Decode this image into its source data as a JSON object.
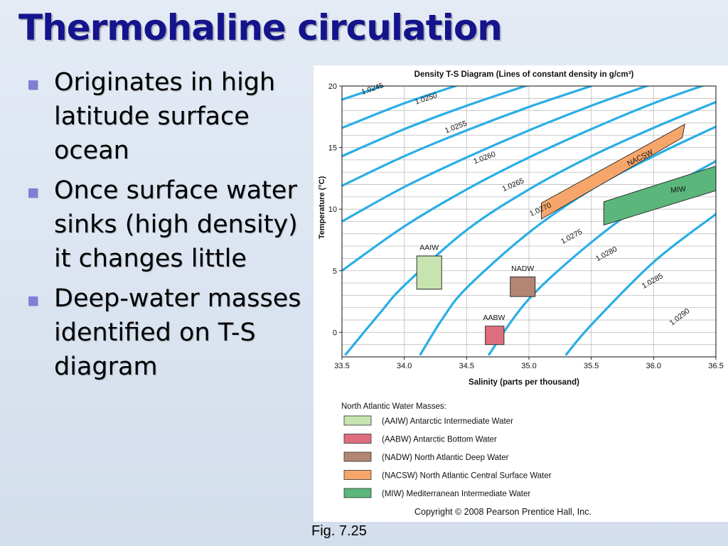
{
  "slide": {
    "title": "Thermohaline circulation",
    "bullets": [
      "Originates in high latitude surface ocean",
      "Once surface water sinks (high density) it changes little",
      "Deep-water masses identified on T-S diagram"
    ],
    "caption": "Fig. 7.25"
  },
  "chart_data": {
    "type": "diagram",
    "title": "Density T-S Diagram (Lines of constant density in g/cm³)",
    "xlabel": "Salinity (parts per thousand)",
    "ylabel": "Temperature (°C)",
    "xlim": [
      33.5,
      36.5
    ],
    "ylim": [
      -2,
      20
    ],
    "x_ticks": [
      "33.5",
      "34.0",
      "34.5",
      "35.0",
      "35.5",
      "36.0",
      "36.5"
    ],
    "y_ticks": [
      "0",
      "5",
      "10",
      "15",
      "20"
    ],
    "x_tick_values": [
      33.5,
      34.0,
      34.5,
      35.0,
      35.5,
      36.0,
      36.5
    ],
    "y_tick_values": [
      0,
      5,
      10,
      15,
      20
    ],
    "grid": true,
    "line_color": "#2aaee6",
    "isopycnals": [
      {
        "label": "1.0245",
        "points": [
          [
            33.5,
            18.9
          ],
          [
            34.0,
            20.6
          ]
        ],
        "label_at": [
          33.75,
          19.6
        ]
      },
      {
        "label": "1.0250",
        "points": [
          [
            33.5,
            16.6
          ],
          [
            34.0,
            18.6
          ],
          [
            34.5,
            20.3
          ]
        ],
        "label_at": [
          34.18,
          18.8
        ]
      },
      {
        "label": "1.0255",
        "points": [
          [
            33.5,
            14.3
          ],
          [
            34.0,
            16.5
          ],
          [
            34.5,
            18.4
          ],
          [
            35.0,
            20.1
          ]
        ],
        "label_at": [
          34.42,
          16.5
        ]
      },
      {
        "label": "1.0260",
        "points": [
          [
            33.5,
            11.9
          ],
          [
            34.0,
            14.3
          ],
          [
            34.5,
            16.4
          ],
          [
            35.0,
            18.3
          ],
          [
            35.5,
            20.0
          ]
        ],
        "label_at": [
          34.65,
          14.0
        ]
      },
      {
        "label": "1.0265",
        "points": [
          [
            33.5,
            9.0
          ],
          [
            34.0,
            11.8
          ],
          [
            34.5,
            14.2
          ],
          [
            35.0,
            16.4
          ],
          [
            35.5,
            18.4
          ],
          [
            36.0,
            20.2
          ]
        ],
        "label_at": [
          34.88,
          11.8
        ]
      },
      {
        "label": "1.0270",
        "points": [
          [
            33.5,
            5.0
          ],
          [
            34.0,
            8.6
          ],
          [
            34.5,
            11.6
          ],
          [
            35.0,
            14.2
          ],
          [
            35.5,
            16.5
          ],
          [
            36.0,
            18.6
          ],
          [
            36.5,
            20.4
          ]
        ],
        "label_at": [
          35.1,
          9.8
        ]
      },
      {
        "label": "1.0275",
        "points": [
          [
            33.53,
            -1.8
          ],
          [
            33.8,
            1.5
          ],
          [
            34.0,
            3.8
          ],
          [
            34.5,
            8.3
          ],
          [
            35.0,
            11.6
          ],
          [
            35.5,
            14.3
          ],
          [
            36.0,
            16.6
          ],
          [
            36.5,
            18.7
          ]
        ],
        "label_at": [
          35.35,
          7.6
        ]
      },
      {
        "label": "1.0280",
        "points": [
          [
            34.13,
            -1.8
          ],
          [
            34.3,
            1.0
          ],
          [
            34.5,
            3.6
          ],
          [
            35.0,
            8.1
          ],
          [
            35.5,
            11.6
          ],
          [
            36.0,
            14.3
          ],
          [
            36.5,
            16.7
          ]
        ],
        "label_at": [
          35.63,
          6.2
        ]
      },
      {
        "label": "1.0285",
        "points": [
          [
            34.68,
            -1.8
          ],
          [
            35.0,
            2.7
          ],
          [
            35.5,
            7.3
          ],
          [
            36.0,
            11.0
          ],
          [
            36.5,
            13.9
          ]
        ],
        "label_at": [
          36.0,
          4.0
        ]
      },
      {
        "label": "1.0290",
        "points": [
          [
            35.3,
            -1.8
          ],
          [
            35.5,
            0.6
          ],
          [
            36.0,
            5.7
          ],
          [
            36.5,
            9.6
          ]
        ],
        "label_at": [
          36.22,
          1.1
        ]
      }
    ],
    "water_masses": [
      {
        "id": "AAIW",
        "label": "AAIW",
        "color": "#c6e4b0",
        "points": [
          [
            34.1,
            6.2
          ],
          [
            34.3,
            6.2
          ],
          [
            34.3,
            3.5
          ],
          [
            34.1,
            3.5
          ]
        ],
        "label_at": [
          34.2,
          6.7
        ]
      },
      {
        "id": "AABW",
        "label": "AABW",
        "color": "#de6e7d",
        "points": [
          [
            34.65,
            0.5
          ],
          [
            34.8,
            0.5
          ],
          [
            34.8,
            -1.0
          ],
          [
            34.65,
            -1.0
          ]
        ],
        "label_at": [
          34.72,
          1.0
        ]
      },
      {
        "id": "NADW",
        "label": "NADW",
        "color": "#b28672",
        "points": [
          [
            34.85,
            4.5
          ],
          [
            35.05,
            4.5
          ],
          [
            35.05,
            2.9
          ],
          [
            34.85,
            2.9
          ]
        ],
        "label_at": [
          34.95,
          5.0
        ]
      },
      {
        "id": "NACSW",
        "label": "NACSW",
        "color": "#f6a66b",
        "points": [
          [
            35.1,
            10.5
          ],
          [
            36.25,
            16.9
          ],
          [
            36.23,
            15.8
          ],
          [
            35.1,
            9.2
          ]
        ],
        "label_at": [
          35.9,
          14.0
        ]
      },
      {
        "id": "MIW",
        "label": "MIW",
        "color": "#5ab67a",
        "points": [
          [
            35.6,
            10.6
          ],
          [
            36.5,
            13.5
          ],
          [
            36.5,
            11.5
          ],
          [
            35.6,
            8.7
          ]
        ],
        "label_at": [
          36.2,
          11.4
        ]
      }
    ],
    "legend": {
      "title": "North Atlantic Water Masses:",
      "entries": [
        {
          "label": "(AAIW) Antarctic Intermediate Water",
          "color": "#c6e4b0"
        },
        {
          "label": "(AABW) Antarctic Bottom Water",
          "color": "#de6e7d"
        },
        {
          "label": "(NADW) North Atlantic Deep Water",
          "color": "#b28672"
        },
        {
          "label": "(NACSW) North Atlantic Central Surface Water",
          "color": "#f6a66b"
        },
        {
          "label": "(MIW) Mediterranean Intermediate Water",
          "color": "#5ab67a"
        }
      ]
    },
    "copyright": "Copyright © 2008 Pearson Prentice Hall, Inc."
  }
}
